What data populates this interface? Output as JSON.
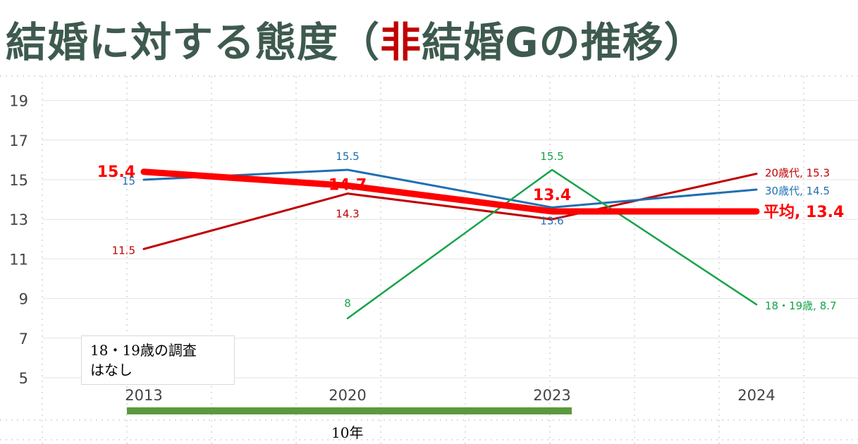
{
  "title": {
    "prefix": "結婚に対する態度（",
    "highlight": "非",
    "suffix": "結婚Gの推移）"
  },
  "colors": {
    "title": "#3e5a4e",
    "highlight": "#c00000",
    "avg": "#ff0000",
    "s20": "#c00000",
    "s30": "#1f6fb2",
    "s18": "#16a34a",
    "bracket": "#5b9a3c",
    "grid": "#bfbfbf"
  },
  "note": {
    "line1": "18・19歳の調査",
    "line2": "はなし"
  },
  "bracket_label": "10年",
  "chart_data": {
    "type": "line",
    "categories": [
      "2013",
      "2020",
      "2023",
      "2024"
    ],
    "ylim": [
      5,
      20
    ],
    "yticks": [
      5,
      7,
      9,
      11,
      13,
      15,
      17,
      19
    ],
    "series": [
      {
        "name": "20歳代",
        "values": [
          11.5,
          14.3,
          13.0,
          15.3
        ],
        "labels": [
          "11.5",
          "14.3",
          "",
          "20歳代, 15.3"
        ]
      },
      {
        "name": "30歳代",
        "values": [
          15.0,
          15.5,
          13.6,
          14.5
        ],
        "labels": [
          "15",
          "15.5",
          "13.6",
          "30歳代, 14.5"
        ]
      },
      {
        "name": "18・19歳",
        "values": [
          null,
          8,
          15.5,
          8.7
        ],
        "labels": [
          "",
          "8",
          "15.5",
          "18・19歳, 8.7"
        ]
      },
      {
        "name": "平均",
        "values": [
          15.4,
          14.7,
          13.4,
          13.4
        ],
        "labels": [
          "15.4",
          "14.7",
          "13.4",
          "平均, 13.4"
        ]
      }
    ]
  }
}
